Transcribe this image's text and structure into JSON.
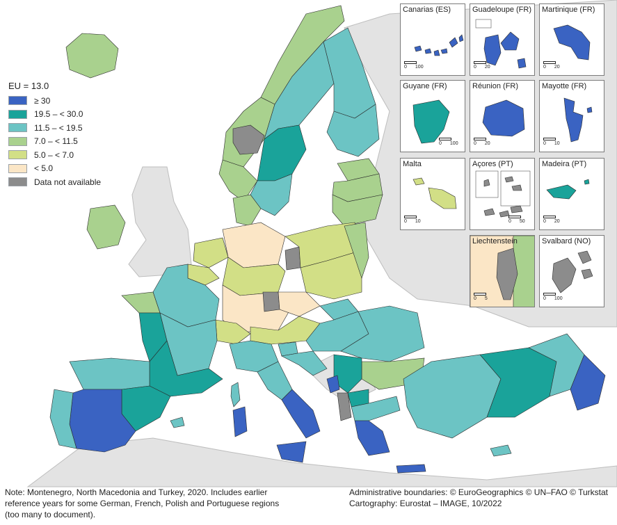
{
  "colors": {
    "ge30": "#3a63c2",
    "r19_30": "#1aa39a",
    "r11_19": "#6cc4c4",
    "r7_11": "#a9d18e",
    "r5_7": "#d2df86",
    "lt5": "#fbe6c6",
    "na": "#8c8c8c",
    "sea": "#ffffff",
    "nonEU": "#e3e3e3",
    "border": "#2a2a2a"
  },
  "legend": {
    "title": "EU = 13.0",
    "items": [
      {
        "label": "≥ 30",
        "color": "#3a63c2"
      },
      {
        "label": "19.5 – < 30.0",
        "color": "#1aa39a"
      },
      {
        "label": "11.5 – < 19.5",
        "color": "#6cc4c4"
      },
      {
        "label": "7.0 – < 11.5",
        "color": "#a9d18e"
      },
      {
        "label": "5.0 – < 7.0",
        "color": "#d2df86"
      },
      {
        "label": "< 5.0",
        "color": "#fbe6c6"
      },
      {
        "label": "Data not available",
        "color": "#8c8c8c"
      }
    ]
  },
  "insets": [
    {
      "id": "canarias",
      "title": "Canarias (ES)",
      "scale": [
        "0",
        "100"
      ],
      "fill": "#3a63c2"
    },
    {
      "id": "guadeloupe",
      "title": "Guadeloupe (FR)",
      "scale": [
        "0",
        "20"
      ],
      "fill": "#3a63c2"
    },
    {
      "id": "martinique",
      "title": "Martinique (FR)",
      "scale": [
        "0",
        "20"
      ],
      "fill": "#3a63c2"
    },
    {
      "id": "guyane",
      "title": "Guyane (FR)",
      "scale": [
        "0",
        "100"
      ],
      "fill": "#1aa39a"
    },
    {
      "id": "reunion",
      "title": "Réunion (FR)",
      "scale": [
        "0",
        "20"
      ],
      "fill": "#3a63c2"
    },
    {
      "id": "mayotte",
      "title": "Mayotte (FR)",
      "scale": [
        "0",
        "10"
      ],
      "fill": "#3a63c2"
    },
    {
      "id": "malta",
      "title": "Malta",
      "scale": [
        "0",
        "10"
      ],
      "fill": "#d2df86"
    },
    {
      "id": "acores",
      "title": "Açores (PT)",
      "scale": [
        "0",
        "50"
      ],
      "fill": "#8c8c8c"
    },
    {
      "id": "madeira",
      "title": "Madeira (PT)",
      "scale": [
        "0",
        "20"
      ],
      "fill": "#1aa39a"
    },
    {
      "id": "liechtenstein",
      "title": "Liechtenstein",
      "scale": [
        "0",
        "5"
      ],
      "fill": "#8c8c8c"
    },
    {
      "id": "svalbard",
      "title": "Svalbard (NO)",
      "scale": [
        "0",
        "100"
      ],
      "fill": "#8c8c8c"
    }
  ],
  "footer": {
    "note_lines": [
      "Note: Montenegro, North Macedonia and Turkey, 2020. Includes earlier",
      "reference years for some German, French, Polish and Portuguese regions",
      "(too many to document)."
    ],
    "credit_lines": [
      "Administrative boundaries: © EuroGeographics © UN–FAO © Turkstat",
      "Cartography: Eurostat – IMAGE, 10/2022"
    ]
  }
}
